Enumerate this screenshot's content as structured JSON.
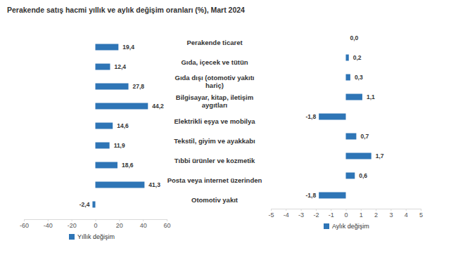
{
  "chart_data": [
    {
      "type": "bar",
      "title": "Perakende satış hacmi yıllık ve aylık değişim oranları (%), Mart 2024",
      "orientation": "horizontal",
      "categories": [
        "Perakende ticaret",
        "Gıda, içecek ve tütün",
        "Gıda dışı (otomotiv yakıtı\nhariç)",
        "Bilgisayar, kitap, iletişim\naygıtları",
        "Elektrikli eşya ve mobilya",
        "Tekstil, giyim ve ayakkabı",
        "Tıbbi ürünler ve kozmetik",
        "Posta veya internet üzerinden",
        "Otomotiv yakıt"
      ],
      "series": [
        {
          "name": "Yıllık değişim",
          "color": "#2e75b6",
          "values": [
            19.4,
            12.4,
            27.8,
            44.2,
            14.6,
            11.9,
            18.6,
            41.3,
            -2.4
          ],
          "value_labels": [
            "19,4",
            "12,4",
            "27,8",
            "44,2",
            "14,6",
            "11,9",
            "18,6",
            "41,3",
            "-2,4"
          ]
        }
      ],
      "xlim": [
        -60,
        60
      ],
      "xticks": [
        -60,
        -40,
        -20,
        0,
        20,
        40,
        60
      ],
      "data_labels": true,
      "legend": "bottom"
    },
    {
      "type": "bar",
      "orientation": "horizontal",
      "series": [
        {
          "name": "Aylık değişim",
          "color": "#2e75b6",
          "values": [
            0.0,
            0.2,
            0.3,
            1.1,
            -1.8,
            0.7,
            1.7,
            0.6,
            -1.8
          ],
          "value_labels": [
            "0,0",
            "0,2",
            "0,3",
            "1,1",
            "-1,8",
            "0,7",
            "1,7",
            "0,6",
            "-1,8"
          ]
        }
      ],
      "xlim": [
        -5,
        5
      ],
      "xticks": [
        -5,
        -4,
        -3,
        -2,
        -1,
        0,
        1,
        2,
        3,
        4,
        5
      ],
      "data_labels": true,
      "legend": "bottom"
    }
  ]
}
